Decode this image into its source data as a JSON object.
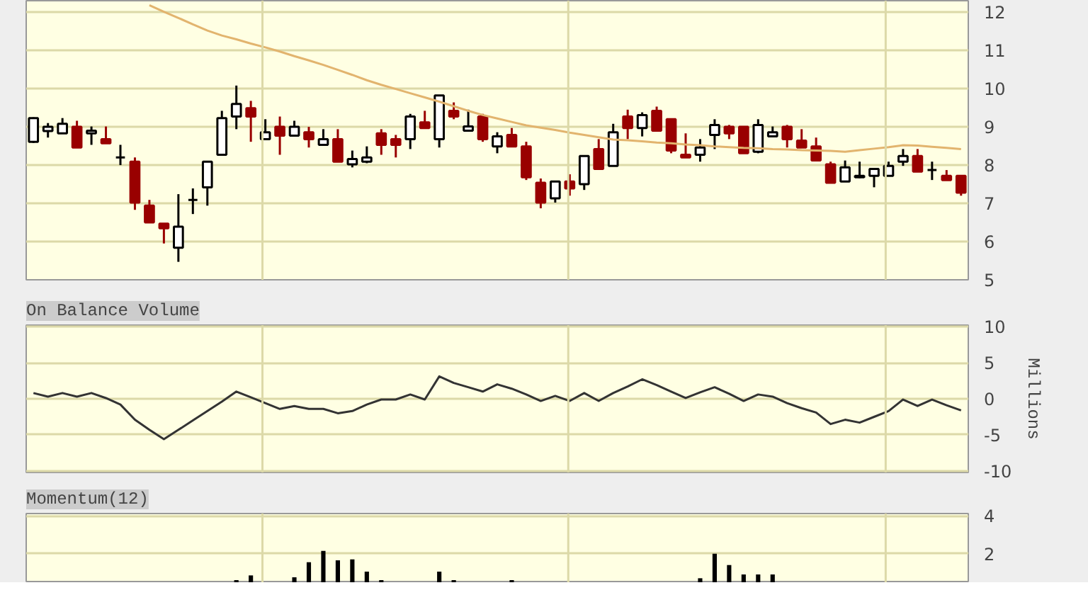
{
  "chart_data": [
    {
      "type": "candlestick",
      "categories": [
        null,
        null,
        null,
        null,
        null,
        null,
        null,
        null,
        null,
        null,
        null,
        null,
        null,
        null,
        null,
        null,
        null,
        null,
        null,
        null,
        null,
        null,
        null,
        null,
        null,
        null,
        null,
        null,
        null,
        null,
        null,
        null,
        null,
        null,
        null,
        null,
        null,
        null,
        null,
        null,
        null,
        null,
        null,
        null,
        null,
        null,
        null,
        null,
        null,
        null,
        null,
        null,
        null,
        null,
        null,
        null,
        null,
        null,
        null,
        null,
        null,
        null,
        null,
        null,
        null
      ],
      "ohlc": [
        [
          8.61,
          9.25,
          8.58,
          9.23
        ],
        [
          8.89,
          9.1,
          8.72,
          9.0
        ],
        [
          8.83,
          9.23,
          8.83,
          9.08
        ],
        [
          9.0,
          9.16,
          8.46,
          8.46
        ],
        [
          8.83,
          9.01,
          8.53,
          8.9
        ],
        [
          8.68,
          9.01,
          8.57,
          8.57
        ],
        [
          8.2,
          8.53,
          8.0,
          8.2
        ],
        [
          8.09,
          8.2,
          6.83,
          7.02
        ],
        [
          6.94,
          7.09,
          6.5,
          6.5
        ],
        [
          6.47,
          6.47,
          5.95,
          6.35
        ],
        [
          5.84,
          7.24,
          5.47,
          6.39
        ],
        [
          7.09,
          7.39,
          6.72,
          7.09
        ],
        [
          7.42,
          8.09,
          6.94,
          8.09
        ],
        [
          8.27,
          9.42,
          8.27,
          9.23
        ],
        [
          9.27,
          10.08,
          8.94,
          9.6
        ],
        [
          9.49,
          9.68,
          8.61,
          9.27
        ],
        [
          8.68,
          9.2,
          8.68,
          8.86
        ],
        [
          9.0,
          9.27,
          8.27,
          8.77
        ],
        [
          8.77,
          9.16,
          8.77,
          9.0
        ],
        [
          8.86,
          9.0,
          8.46,
          8.68
        ],
        [
          8.53,
          8.94,
          8.53,
          8.68
        ],
        [
          8.68,
          8.94,
          8.09,
          8.09
        ],
        [
          8.02,
          8.38,
          7.94,
          8.16
        ],
        [
          8.09,
          8.49,
          8.05,
          8.2
        ],
        [
          8.83,
          8.94,
          8.27,
          8.53
        ],
        [
          8.68,
          8.79,
          8.2,
          8.53
        ],
        [
          8.68,
          9.34,
          8.42,
          9.27
        ],
        [
          9.12,
          9.42,
          8.97,
          8.97
        ],
        [
          8.68,
          9.82,
          8.46,
          9.82
        ],
        [
          9.42,
          9.64,
          9.2,
          9.27
        ],
        [
          8.9,
          9.45,
          8.9,
          9.01
        ],
        [
          9.27,
          9.34,
          8.61,
          8.68
        ],
        [
          8.49,
          8.86,
          8.31,
          8.75
        ],
        [
          8.79,
          8.97,
          8.49,
          8.49
        ],
        [
          8.49,
          8.61,
          7.61,
          7.68
        ],
        [
          7.54,
          7.65,
          6.87,
          7.02
        ],
        [
          7.13,
          7.57,
          7.02,
          7.57
        ],
        [
          7.57,
          7.76,
          7.2,
          7.39
        ],
        [
          7.5,
          8.24,
          7.35,
          8.24
        ],
        [
          8.42,
          8.68,
          7.9,
          7.9
        ],
        [
          7.98,
          9.08,
          7.98,
          8.86
        ],
        [
          9.27,
          9.45,
          8.68,
          8.97
        ],
        [
          8.97,
          9.38,
          8.75,
          9.31
        ],
        [
          9.42,
          9.53,
          8.9,
          8.9
        ],
        [
          9.2,
          9.2,
          8.31,
          8.38
        ],
        [
          8.27,
          8.83,
          8.2,
          8.2
        ],
        [
          8.27,
          8.68,
          8.09,
          8.46
        ],
        [
          8.79,
          9.2,
          8.42,
          9.05
        ],
        [
          9.0,
          9.05,
          8.68,
          8.83
        ],
        [
          9.0,
          9.0,
          8.31,
          8.31
        ],
        [
          8.35,
          9.2,
          8.31,
          9.05
        ],
        [
          8.75,
          9.01,
          8.75,
          8.86
        ],
        [
          9.0,
          9.05,
          8.46,
          8.68
        ],
        [
          8.64,
          8.94,
          8.46,
          8.46
        ],
        [
          8.49,
          8.72,
          8.12,
          8.12
        ],
        [
          8.02,
          8.09,
          7.54,
          7.54
        ],
        [
          7.57,
          8.12,
          7.57,
          7.94
        ],
        [
          7.68,
          8.09,
          7.66,
          7.72
        ],
        [
          7.72,
          7.9,
          7.42,
          7.9
        ],
        [
          7.72,
          8.09,
          7.72,
          7.98
        ],
        [
          8.09,
          8.42,
          7.98,
          8.24
        ],
        [
          8.24,
          8.42,
          7.83,
          7.83
        ],
        [
          7.87,
          8.09,
          7.61,
          7.87
        ],
        [
          7.72,
          7.87,
          7.61,
          7.61
        ],
        [
          7.72,
          7.72,
          7.2,
          7.28
        ]
      ],
      "series": [
        {
          "type": "line",
          "values": [
            null,
            null,
            null,
            null,
            null,
            null,
            null,
            null,
            12.18,
            12.01,
            11.85,
            11.68,
            11.52,
            11.39,
            11.29,
            11.18,
            11.08,
            10.97,
            10.85,
            10.74,
            10.62,
            10.49,
            10.36,
            10.22,
            10.1,
            9.99,
            9.88,
            9.77,
            9.66,
            9.54,
            9.42,
            9.31,
            9.22,
            9.13,
            9.04,
            8.98,
            8.92,
            8.85,
            8.79,
            8.73,
            8.67,
            8.65,
            8.62,
            8.59,
            8.57,
            8.54,
            8.52,
            8.49,
            8.47,
            8.45,
            8.44,
            8.42,
            8.41,
            8.39,
            8.38,
            8.37,
            8.35,
            8.39,
            8.43,
            8.47,
            8.52,
            8.51,
            8.48,
            8.45,
            8.42
          ],
          "color": "#e2b46e"
        }
      ],
      "ylim": [
        5,
        12.3
      ],
      "yticks": [
        5,
        6,
        7,
        8,
        9,
        10,
        11,
        12
      ],
      "grid": true,
      "tick_labels": "y"
    },
    {
      "type": "line",
      "title": "On Balance Volume",
      "ylabel": "Millions",
      "categories": [
        null,
        null,
        null,
        null,
        null,
        null,
        null,
        null,
        null,
        null,
        null,
        null,
        null,
        null,
        null,
        null,
        null,
        null,
        null,
        null,
        null,
        null,
        null,
        null,
        null,
        null,
        null,
        null,
        null,
        null,
        null,
        null,
        null,
        null,
        null,
        null,
        null,
        null,
        null,
        null,
        null,
        null,
        null,
        null,
        null,
        null,
        null,
        null,
        null,
        null,
        null,
        null,
        null,
        null,
        null,
        null,
        null,
        null,
        null,
        null,
        null,
        null,
        null,
        null,
        null
      ],
      "values": [
        0.8,
        0.3,
        0.8,
        0.3,
        0.8,
        0.1,
        -0.8,
        -2.9,
        -4.3,
        -5.6,
        -4.3,
        -3.0,
        -1.7,
        -0.4,
        1.0,
        0.2,
        -0.6,
        -1.4,
        -1.0,
        -1.4,
        -1.4,
        -2.0,
        -1.7,
        -0.8,
        -0.1,
        -0.1,
        0.6,
        -0.1,
        3.1,
        2.2,
        1.6,
        1.0,
        2.0,
        1.4,
        0.6,
        -0.3,
        0.4,
        -0.3,
        0.8,
        -0.3,
        0.8,
        1.7,
        2.7,
        1.9,
        1.0,
        0.1,
        0.9,
        1.6,
        0.7,
        -0.3,
        0.6,
        0.3,
        -0.6,
        -1.3,
        -1.9,
        -3.5,
        -2.9,
        -3.3,
        -2.5,
        -1.7,
        -0.1,
        -1.0,
        -0.1,
        -0.9,
        -1.6
      ],
      "color": "#333333",
      "ylim": [
        -10.2,
        10.2
      ],
      "yticks": [
        -10,
        -5,
        0,
        5,
        10
      ],
      "grid": true,
      "tick_labels": "y"
    },
    {
      "type": "bar",
      "title": "Momentum(12)",
      "categories": [
        null,
        null,
        null,
        null,
        null,
        null,
        null,
        null,
        null,
        null,
        null,
        null,
        null,
        null,
        null,
        null,
        null,
        null,
        null,
        null,
        null,
        null,
        null,
        null,
        null,
        null,
        null,
        null,
        null,
        null,
        null,
        null,
        null,
        null,
        null,
        null,
        null,
        null,
        null,
        null,
        null,
        null,
        null,
        null,
        null,
        null,
        null,
        null,
        null,
        null,
        null,
        null,
        null,
        null,
        null,
        null,
        null,
        null,
        null,
        null,
        null,
        null,
        null,
        null,
        null
      ],
      "values": [
        null,
        null,
        null,
        null,
        null,
        null,
        null,
        null,
        null,
        null,
        null,
        null,
        null,
        null,
        0.6,
        0.85,
        null,
        null,
        0.75,
        1.55,
        2.15,
        1.65,
        1.7,
        1.05,
        0.6,
        null,
        null,
        null,
        1.05,
        0.6,
        null,
        null,
        null,
        0.6,
        null,
        null,
        null,
        null,
        null,
        null,
        null,
        null,
        null,
        null,
        null,
        null,
        0.7,
        2.0,
        1.4,
        0.9,
        0.9,
        0.9,
        null,
        null,
        null,
        null,
        null,
        null,
        null,
        null,
        null,
        null,
        null,
        null,
        null
      ],
      "color": "#000000",
      "ylim": [
        0.45,
        4.13
      ],
      "yticks": [
        2,
        4
      ],
      "grid": true,
      "tick_labels": "y"
    }
  ]
}
